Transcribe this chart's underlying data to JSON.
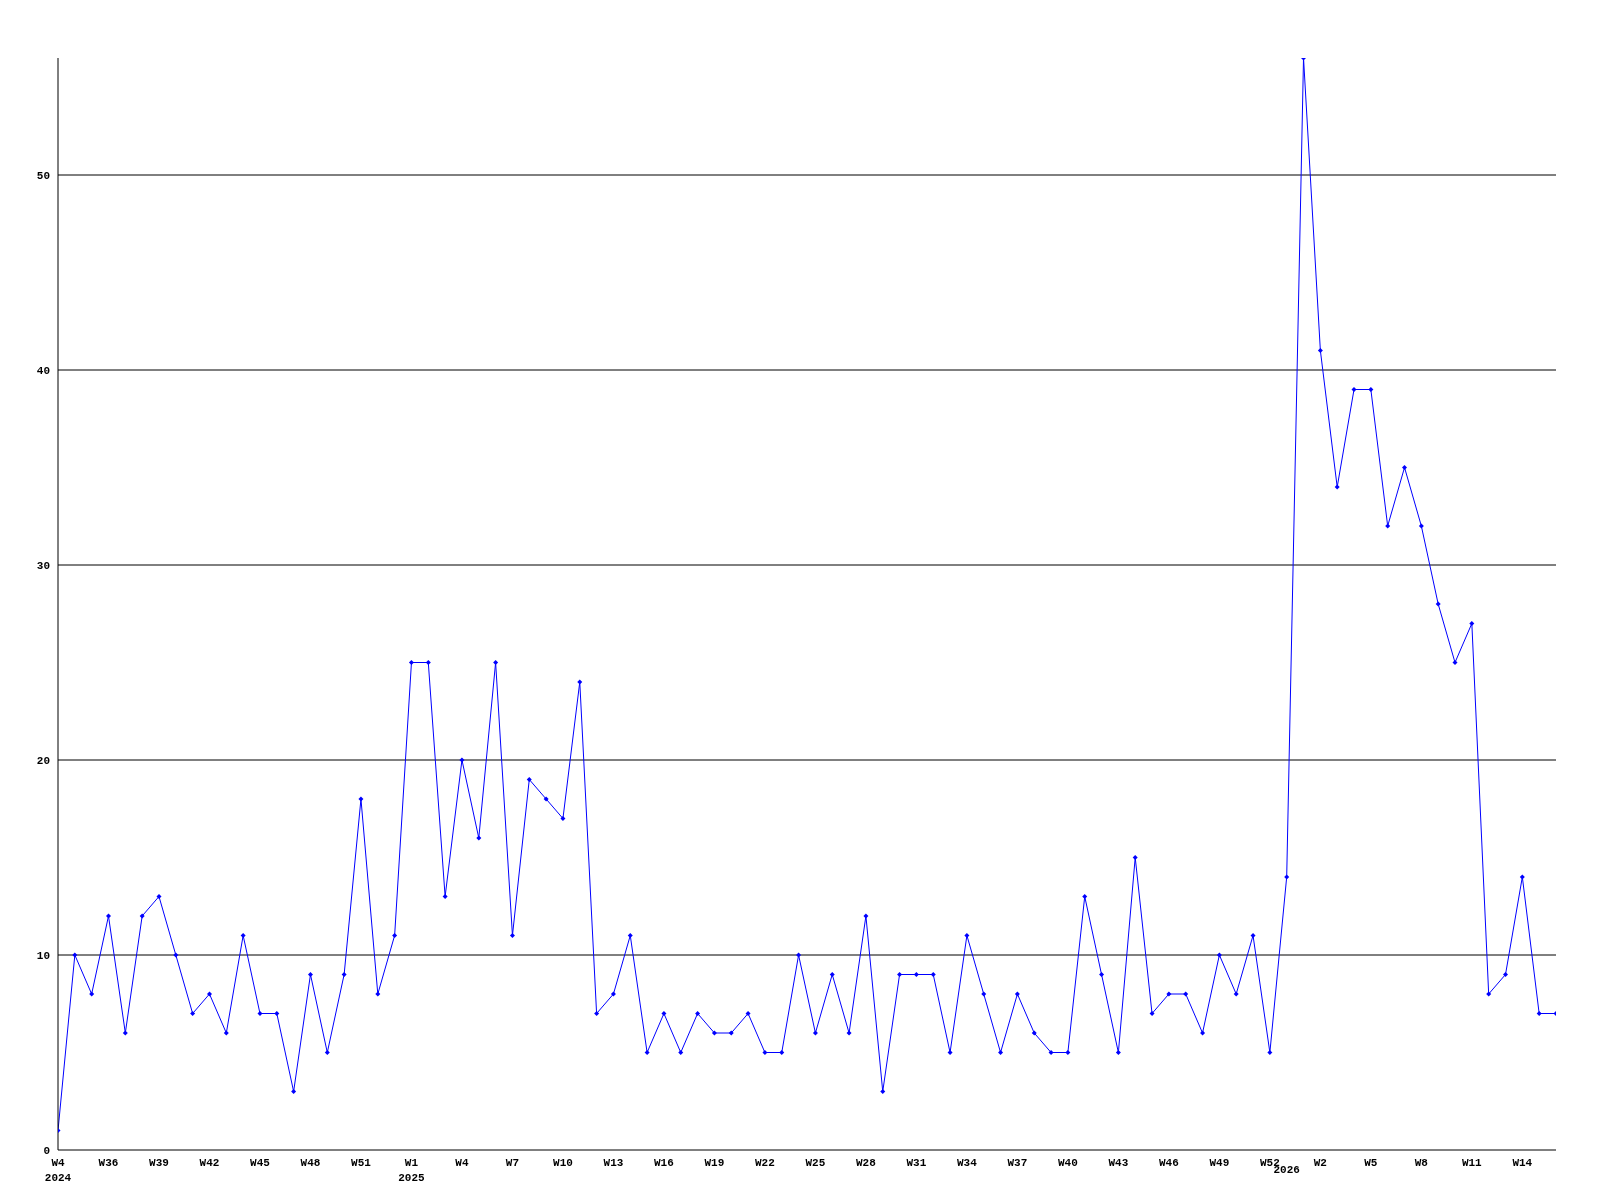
{
  "chart_data": {
    "type": "line",
    "categories": [
      "W4\n2024",
      null,
      null,
      "W36",
      null,
      null,
      "W39",
      null,
      null,
      "W42",
      null,
      null,
      "W45",
      null,
      null,
      "W48",
      null,
      null,
      "W51",
      null,
      null,
      "W1\n2025",
      null,
      null,
      "W4",
      null,
      null,
      "W7",
      null,
      null,
      "W10",
      null,
      null,
      "W13",
      null,
      null,
      "W16",
      null,
      null,
      "W19",
      null,
      null,
      "W22",
      null,
      null,
      "W25",
      null,
      null,
      "W28",
      null,
      null,
      "W31",
      null,
      null,
      "W34",
      null,
      null,
      "W37",
      null,
      null,
      "W40",
      null,
      null,
      "W43",
      null,
      null,
      "W46",
      null,
      null,
      "W49",
      null,
      null,
      "W52",
      "\n2026",
      null,
      "W2",
      null,
      null,
      "W5",
      null,
      null,
      "W8",
      null,
      null,
      "W11",
      null,
      null,
      "W14",
      null,
      null
    ],
    "series": [
      {
        "color": "#0000ff",
        "values": [
          1,
          10,
          8,
          12,
          6,
          12,
          13,
          10,
          7,
          8,
          6,
          11,
          7,
          7,
          3,
          9,
          5,
          9,
          18,
          8,
          11,
          25,
          25,
          13,
          20,
          16,
          25,
          11,
          19,
          18,
          17,
          24,
          7,
          8,
          11,
          5,
          7,
          5,
          7,
          6,
          6,
          7,
          5,
          5,
          10,
          6,
          9,
          6,
          12,
          3,
          9,
          9,
          9,
          5,
          11,
          8,
          5,
          8,
          6,
          5,
          5,
          13,
          9,
          5,
          15,
          7,
          8,
          8,
          6,
          10,
          8,
          11,
          5,
          14,
          56,
          41,
          34,
          39,
          39,
          32,
          35,
          32,
          28,
          25,
          27,
          8,
          9,
          14,
          7,
          7
        ]
      }
    ],
    "ylim": [
      0,
      56
    ],
    "yticks": [
      0,
      10,
      20,
      30,
      40,
      50
    ],
    "grid": "y",
    "marker": "diamond",
    "line_style": "solid"
  }
}
